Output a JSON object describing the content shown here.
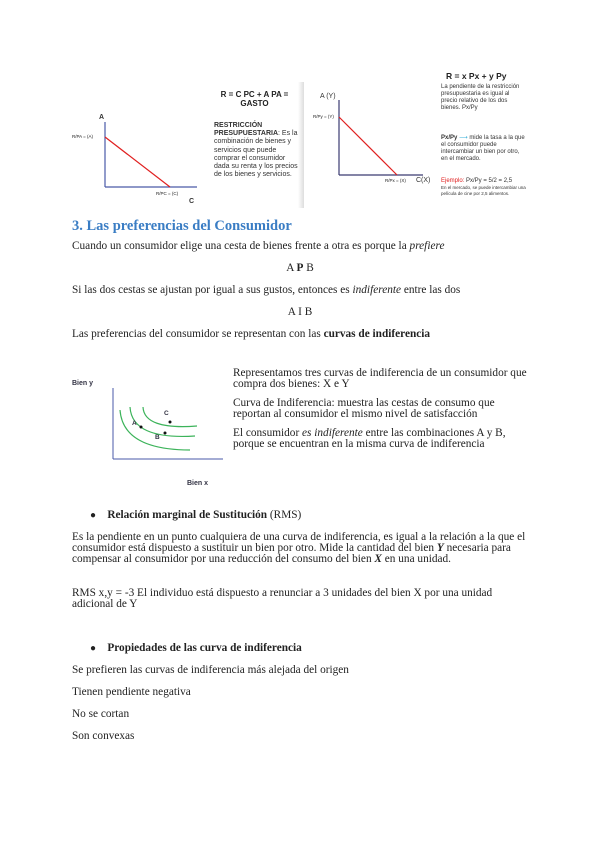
{
  "figure1": {
    "axis_y": "A",
    "y_intercept": "R/PA = (A)",
    "x_intercept": "R/PC = (C)",
    "axis_x": "C",
    "formula_line1": "R = C PC + A PA =",
    "formula_line2": "GASTO",
    "definition_title": "RESTRICCIÓN PRESUPUESTARIA",
    "definition_text": ": Es la combinación de bienes y servicios que puede comprar el consumidor dada su renta y los precios de los bienes y servicios."
  },
  "figure2": {
    "axis_y": "A (Y)",
    "y_intercept": "R/Py = (Y)",
    "x_intercept": "R/Px = (X)",
    "axis_x": "C(X)",
    "formula": "R = x Px + y Py",
    "slope_text": "La pendiente de la restricción presupuestaria es igual al precio relativo de los dos bienes. Px/Py",
    "ratio_label": "Px/Py",
    "ratio_text": "mide la tasa a la que el consumidor puede intercambiar un bien por otro, en el mercado.",
    "example_label": "Ejemplo:",
    "example_value": "Px/Py = 5/2 = 2,5",
    "example_text": "En el mercado, se puede intercambiar una película de cine por 2,5 alimentos."
  },
  "section": {
    "heading": "3. Las preferencias del Consumidor",
    "p1_text": "Cuando un consumidor elige una cesta de bienes frente a otra es porque la ",
    "p1_italic": "prefiere",
    "rel1_a": "A ",
    "rel1_op": "P",
    "rel1_b": " B",
    "p2_text": "Si las dos cestas se ajustan por igual a sus gustos, entonces es ",
    "p2_italic": "indiferente",
    "p2_end": " entre las dos",
    "rel2": "A I B",
    "p3_text": "Las preferencias del consumidor se representan con las ",
    "p3_bold": "curvas de indiferencia"
  },
  "figure3": {
    "axis_y": "Bien y",
    "axis_x": "Bien x",
    "points": [
      "A",
      "B",
      "C"
    ],
    "curve_color": "#3cb35a"
  },
  "side_text": {
    "t1": "Representamos tres curvas de indiferencia de un consumidor que compra dos bienes: X e Y",
    "t2": "Curva de Indiferencia: muestra las cestas de consumo que reportan al consumidor el mismo nivel de satisfacción",
    "t3_a": "El consumidor ",
    "t3_italic": "es indiferente",
    "t3_b": " entre las combinaciones A y B, porque se encuentran en la misma curva de indiferencia"
  },
  "rms": {
    "bullet_bold": "Relación marginal de Sustitución",
    "bullet_rest": " (RMS)",
    "p1_a": "Es la pendiente en un punto cualquiera de una curva de indiferencia, es igual a la relación a la que el consumidor está dispuesto a sustituir un bien por otro. Mide la cantidad del bien ",
    "p1_y": "Y",
    "p1_b": " necesaria para compensar al consumidor por una reducción del consumo del bien ",
    "p1_x": "X",
    "p1_c": " en una unidad.",
    "p2": "RMS x,y = -3 El individuo está dispuesto a renunciar a 3 unidades del bien X por una unidad adicional de Y"
  },
  "props": {
    "bullet_bold": "Propiedades de las curva de indiferencia",
    "items": [
      "Se prefieren las curvas de indiferencia más alejada del origen",
      "Tienen pendiente negativa",
      "No se cortan",
      "Son convexas"
    ]
  }
}
